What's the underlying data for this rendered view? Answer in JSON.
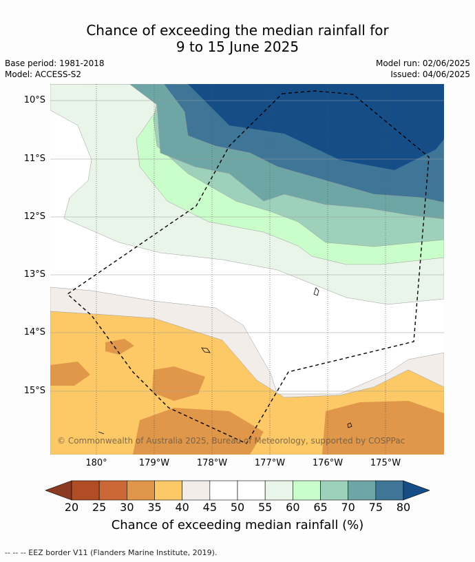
{
  "title_line1": "Chance of exceeding the median rainfall for",
  "title_line2": "9 to 15 June 2025",
  "base_period": "Base period: 1981-2018",
  "model": "Model: ACCESS-S2",
  "model_run": "Model run: 02/06/2025",
  "issued": "Issued: 04/06/2025",
  "lat_labels": [
    "10°S",
    "11°S",
    "12°S",
    "13°S",
    "14°S",
    "15°S"
  ],
  "lon_labels": [
    "180°",
    "179°W",
    "178°W",
    "177°W",
    "176°W",
    "175°W"
  ],
  "copyright": "© Commonwealth of Australia 2025, Bureau of Meteorology, supported by COSPPac",
  "colorbar": {
    "ticks": [
      "20",
      "25",
      "30",
      "35",
      "40",
      "45",
      "50",
      "55",
      "60",
      "65",
      "70",
      "75",
      "80"
    ],
    "colors": [
      "#8c3a24",
      "#b04c26",
      "#cc6835",
      "#e0974a",
      "#fdc966",
      "#f2ede8",
      "#ffffff",
      "#ffffff",
      "#eaf5ea",
      "#c9fdca",
      "#9ed1bb",
      "#6ea5a5",
      "#3f7698",
      "#154d86"
    ],
    "label": "Chance of exceeding median rainfall (%)"
  },
  "footer": "--  --  -- EEZ border V11 (Flanders Marine Institute, 2019)."
}
